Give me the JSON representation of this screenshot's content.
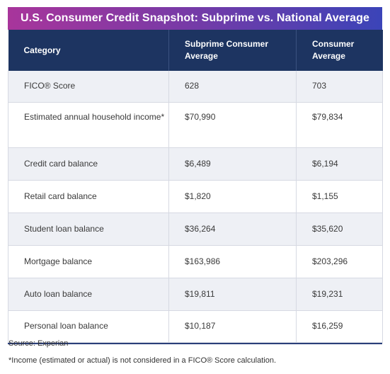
{
  "title": "U.S. Consumer Credit Snapshot: Subprime vs. National Average",
  "table": {
    "headers": [
      "Category",
      "Subprime Consumer Average",
      "Consumer Average"
    ],
    "rows": [
      [
        "FICO® Score",
        "628",
        "703"
      ],
      [
        "Estimated annual household income*",
        "$70,990",
        "$79,834"
      ],
      [
        "Credit card balance",
        "$6,489",
        "$6,194"
      ],
      [
        "Retail card balance",
        "$1,820",
        "$1,155"
      ],
      [
        "Student loan balance",
        "$36,264",
        "$35,620"
      ],
      [
        "Mortgage balance",
        "$163,986",
        "$203,296"
      ],
      [
        "Auto loan balance",
        "$19,811",
        "$19,231"
      ],
      [
        "Personal loan balance",
        "$10,187",
        "$16,259"
      ]
    ]
  },
  "source": "Source: Experian",
  "footnote": "*Income (estimated or actual) is not considered in a FICO® Score calculation.",
  "colors": {
    "title_gradient_start": "#a8359b",
    "title_gradient_end": "#3b44b8",
    "header_bg": "#1d3461",
    "row_stripe": "#eef0f5"
  }
}
